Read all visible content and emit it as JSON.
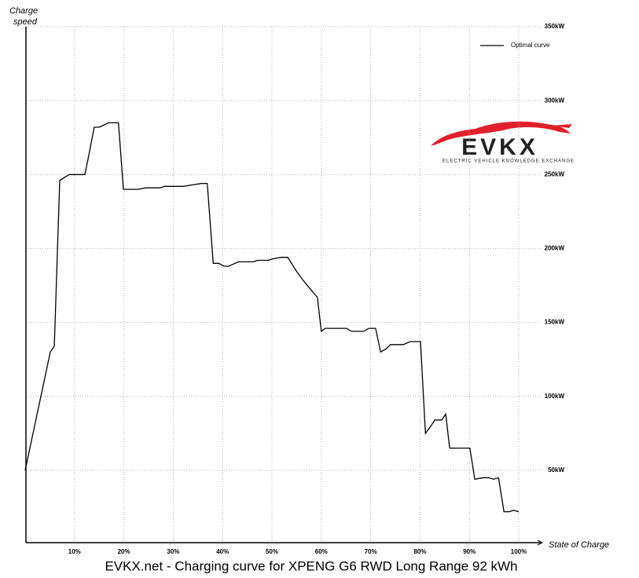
{
  "chart_data": {
    "type": "line",
    "title": "EVKX.net - Charging curve for XPENG G6 RWD Long Range 92 kWh",
    "y_label": [
      "Charge",
      "speed"
    ],
    "x_label": "State of Charge",
    "logo": {
      "text": "EVKX",
      "tagline": "ELECTRIC VEHICLE KNOWLEDGE EXCHANGE"
    },
    "legend_position": "upper right",
    "grid": true,
    "xlim": [
      0,
      100
    ],
    "ylim": [
      0,
      350
    ],
    "xticks": [
      {
        "value": 10,
        "label": "10%"
      },
      {
        "value": 20,
        "label": "20%"
      },
      {
        "value": 30,
        "label": "30%"
      },
      {
        "value": 40,
        "label": "40%"
      },
      {
        "value": 50,
        "label": "50%"
      },
      {
        "value": 60,
        "label": "60%"
      },
      {
        "value": 70,
        "label": "70%"
      },
      {
        "value": 80,
        "label": "80%"
      },
      {
        "value": 90,
        "label": "90%"
      },
      {
        "value": 100,
        "label": "100%"
      }
    ],
    "yticks": [
      {
        "value": 50,
        "label": "50kW"
      },
      {
        "value": 100,
        "label": "100kW"
      },
      {
        "value": 150,
        "label": "150kW"
      },
      {
        "value": 200,
        "label": "200kW"
      },
      {
        "value": 250,
        "label": "250kW"
      },
      {
        "value": 300,
        "label": "300kW"
      },
      {
        "value": 350,
        "label": "350kW"
      }
    ],
    "x": [
      0,
      5.1,
      5.9,
      7.0,
      8.9,
      12.1,
      12.9,
      14.0,
      15.0,
      16.9,
      18.0,
      18.9,
      19.9,
      21.0,
      22.9,
      24.4,
      27.4,
      28.2,
      32.0,
      33.8,
      35.7,
      36.9,
      38.1,
      39.2,
      40.3,
      41.2,
      43.2,
      46.2,
      47.1,
      49.2,
      50.2,
      51.8,
      53.2,
      54.9,
      56.2,
      58.4,
      59.2,
      60.0,
      60.8,
      65.1,
      66.1,
      68.6,
      69.6,
      71.0,
      72.0,
      73.1,
      74.0,
      76.6,
      78.0,
      80.1,
      81.1,
      82.0,
      83.0,
      84.4,
      85.2,
      86.0,
      90.1,
      91.1,
      92.8,
      93.9,
      94.9,
      95.9,
      97.0,
      98.1,
      99.0,
      100
    ],
    "series": [
      {
        "name": "Optimal curve",
        "color": "#000000",
        "values": [
          50,
          130,
          134,
          246,
          250,
          250,
          263,
          282,
          282,
          285,
          285,
          285,
          240,
          240,
          240,
          241,
          241,
          242,
          242,
          243,
          244,
          244,
          190,
          190,
          188,
          188,
          191,
          191,
          192,
          192,
          193,
          194,
          194,
          185,
          179,
          170,
          167,
          144,
          146,
          146,
          144,
          144,
          146,
          146,
          130,
          132,
          135,
          135,
          137,
          137,
          75,
          79,
          84,
          84,
          88,
          65,
          65,
          44,
          45,
          45,
          44,
          45,
          22,
          22,
          23,
          22
        ]
      }
    ]
  }
}
